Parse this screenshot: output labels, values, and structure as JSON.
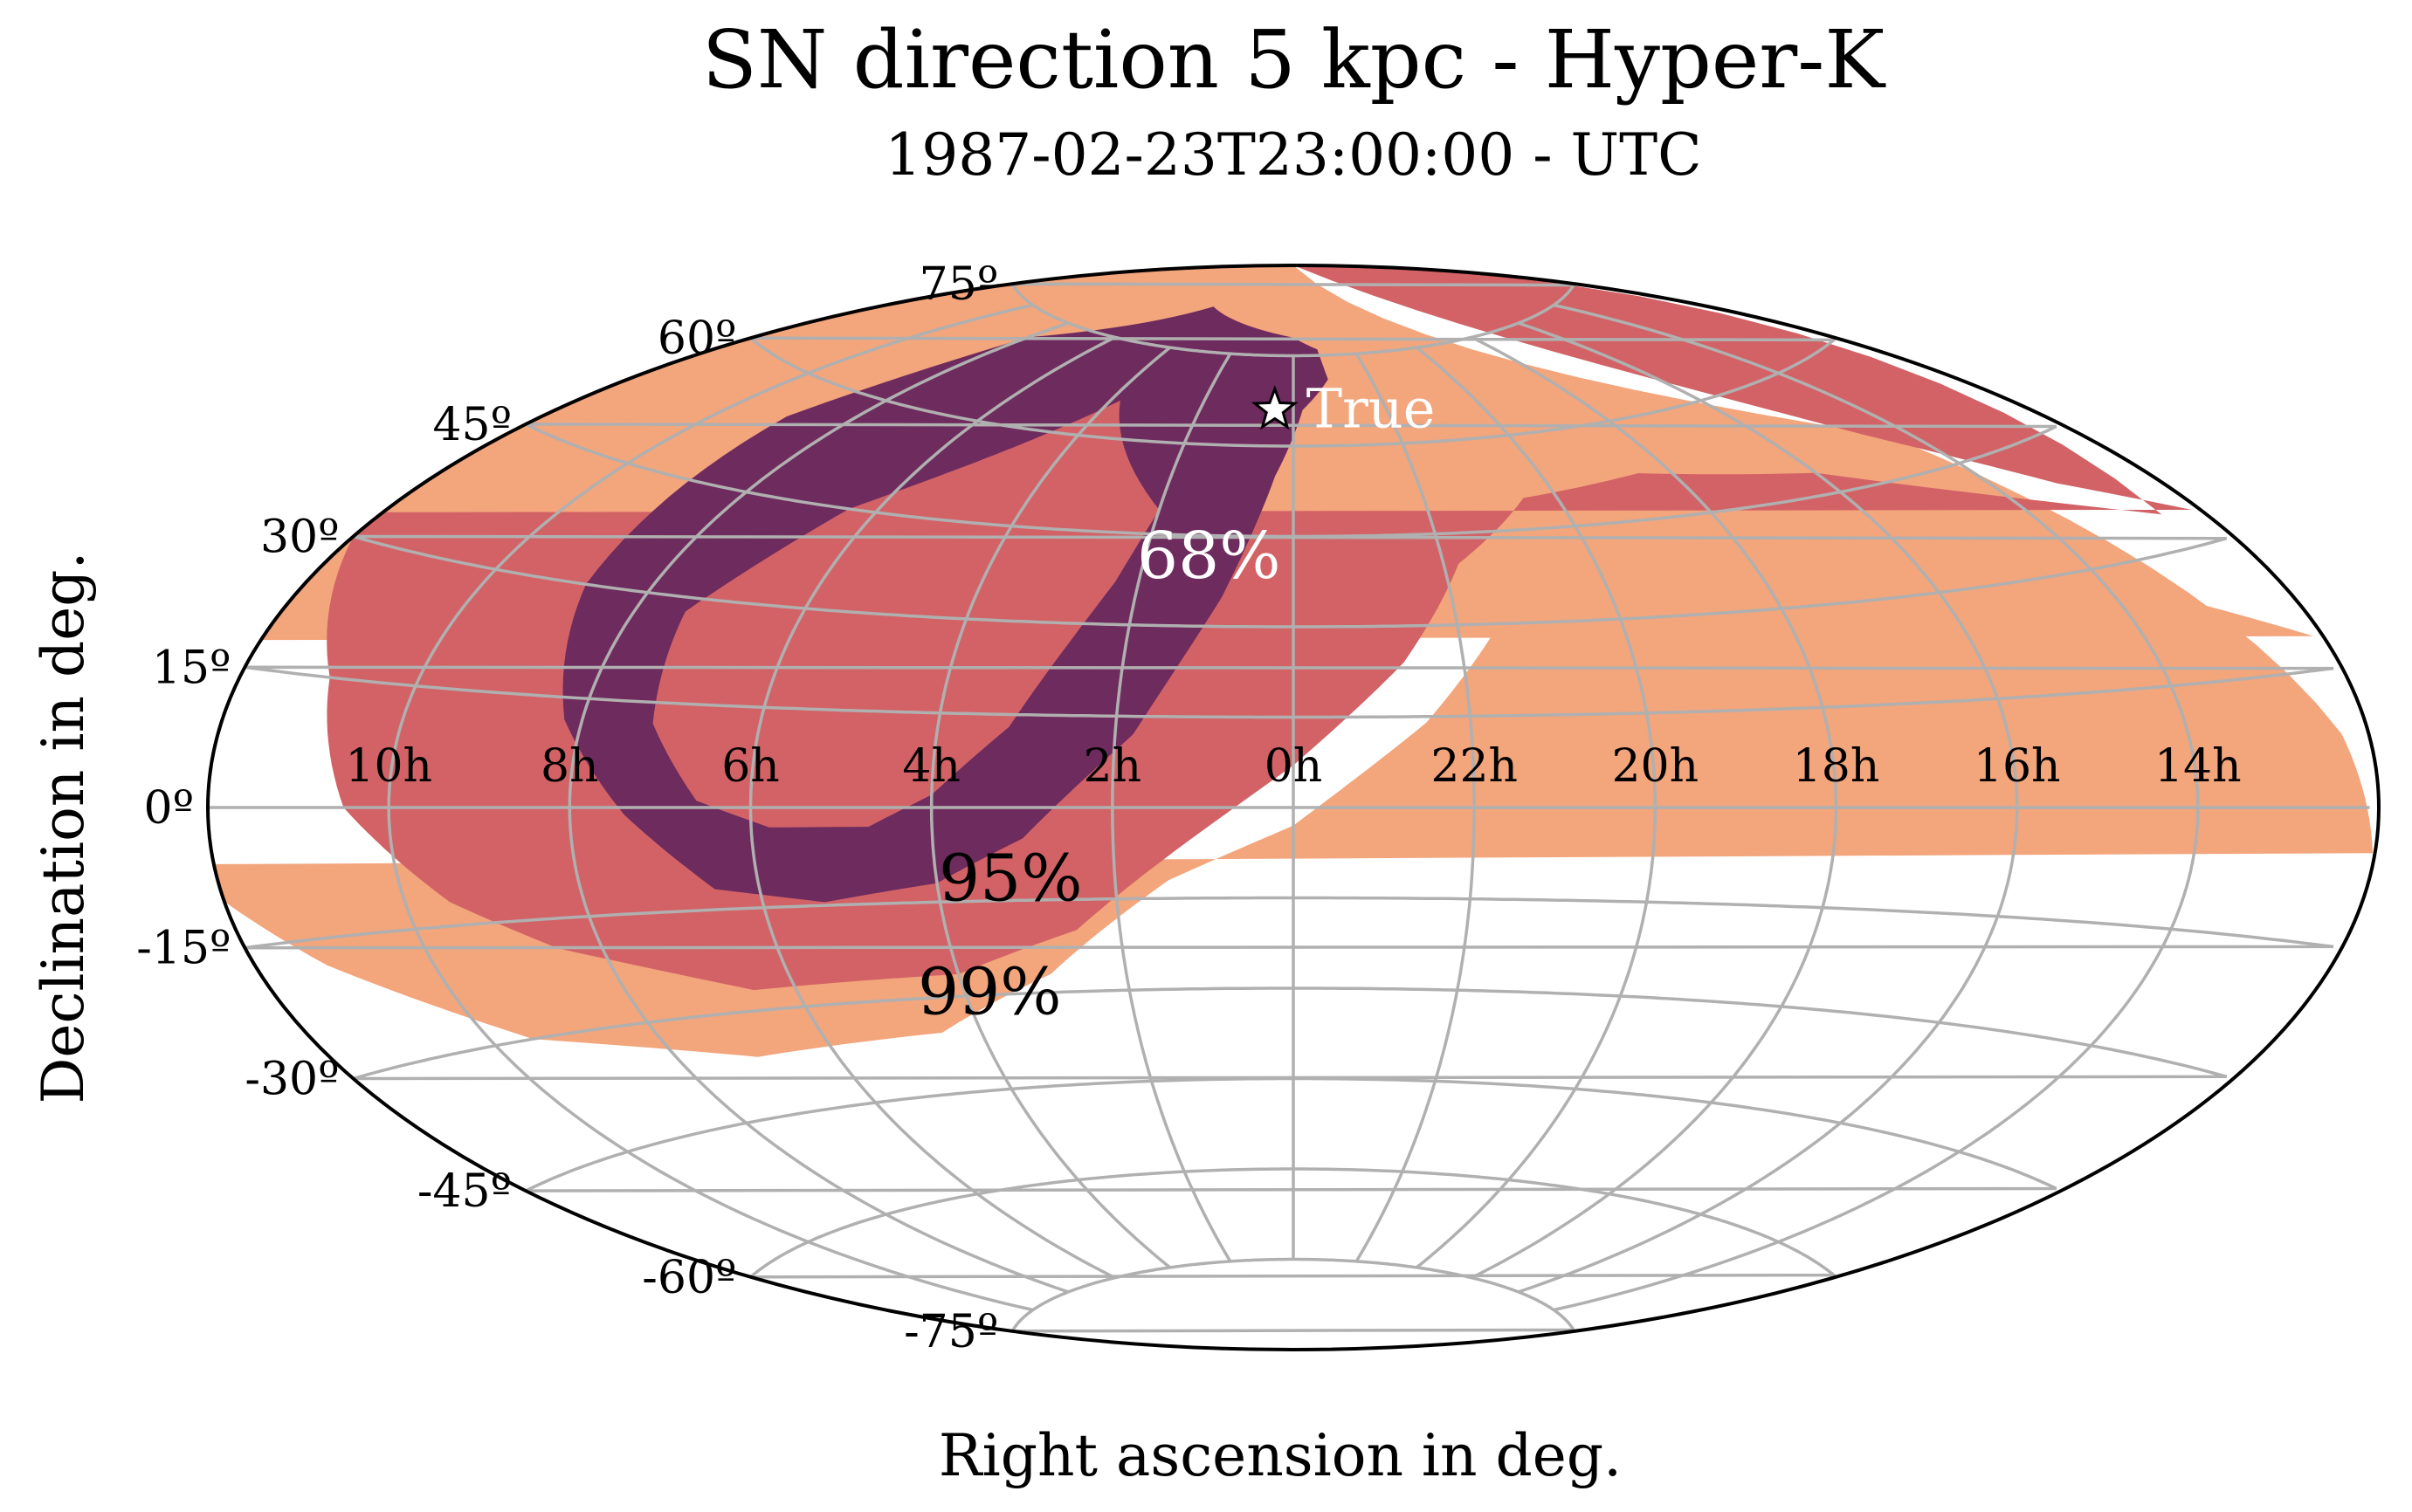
{
  "chart_data": {
    "type": "contour",
    "projection": "aitoff",
    "title": "SN direction 5 kpc - Hyper-K",
    "subtitle": "1987-02-23T23:00:00 - UTC",
    "xlabel": "Right ascension in deg.",
    "ylabel": "Declination in deg.",
    "ra_tick_labels": [
      "10h",
      "8h",
      "6h",
      "4h",
      "2h",
      "0h",
      "22h",
      "20h",
      "18h",
      "16h",
      "14h"
    ],
    "dec_tick_labels": [
      "75º",
      "60º",
      "45º",
      "30º",
      "15º",
      "0º",
      "-15º",
      "-30º",
      "-45º",
      "-60º",
      "-75º"
    ],
    "dec_ticks": [
      75,
      60,
      45,
      30,
      15,
      0,
      -15,
      -30,
      -45,
      -60,
      -75
    ],
    "grid": true,
    "true_position": {
      "label": "True",
      "ra_h": 0.4,
      "dec": 66
    },
    "regions": [
      {
        "name": "99%",
        "color": "#f3a57c",
        "label": "99%",
        "boundary": [
          [
            12,
            90
          ],
          [
            21.6,
            90
          ],
          [
            14.3,
            50
          ],
          [
            12.3,
            8
          ],
          [
            12,
            -6
          ],
          [
            12,
            -10
          ],
          [
            11.2,
            -18
          ],
          [
            9.5,
            -30
          ],
          [
            7,
            -36.5
          ],
          [
            4.5,
            -35.5
          ],
          [
            2.9,
            -27
          ],
          [
            1.4,
            -12
          ],
          [
            0,
            -3
          ],
          [
            22.5,
            14
          ],
          [
            21.3,
            33
          ],
          [
            20.3,
            45
          ],
          [
            18.6,
            46
          ],
          [
            15.5,
            37
          ],
          [
            13.3,
            25
          ],
          [
            12,
            18
          ]
        ],
        "label_pos": {
          "ra_h": 3.8,
          "dec": -33
        }
      },
      {
        "name": "95%",
        "color": "#d26266",
        "label": "95%",
        "boundary": [
          [
            12,
            90
          ],
          [
            19,
            90
          ],
          [
            14.6,
            51
          ],
          [
            13.2,
            40
          ],
          [
            12,
            33
          ],
          [
            12,
            30
          ],
          [
            11,
            15
          ],
          [
            10.5,
            0
          ],
          [
            9.5,
            -12
          ],
          [
            8.5,
            -19
          ],
          [
            6.5,
            -27
          ],
          [
            4,
            -26.5
          ],
          [
            2.5,
            -20
          ],
          [
            1.3,
            -7
          ],
          [
            0,
            7
          ],
          [
            22.7,
            24
          ],
          [
            21.8,
            40
          ],
          [
            20.5,
            50
          ],
          [
            18.5,
            52
          ],
          [
            16,
            48
          ],
          [
            14,
            40
          ],
          [
            12.5,
            34
          ]
        ],
        "label_pos": {
          "ra_h": 3.2,
          "dec": -15
        }
      },
      {
        "name": "68%",
        "color": "#6e2b5e",
        "label": "68%",
        "boundary": [
          [
            0,
            78
          ],
          [
            4.6,
            82
          ],
          [
            8,
            72
          ],
          [
            9,
            55
          ],
          [
            8.8,
            30
          ],
          [
            8.2,
            12
          ],
          [
            7.4,
            -1
          ],
          [
            6.5,
            -12
          ],
          [
            5.3,
            -14.5
          ],
          [
            4,
            -12
          ],
          [
            3,
            -5
          ],
          [
            1.8,
            12
          ],
          [
            0.9,
            35
          ],
          [
            0.3,
            55
          ],
          [
            23.8,
            66
          ],
          [
            23.1,
            71
          ],
          [
            23.2,
            76
          ]
        ],
        "label_pos": {
          "ra_h": 1.1,
          "dec": 38
        }
      },
      {
        "name": "inner",
        "color": "#d26266",
        "label": "",
        "boundary": [
          [
            3.8,
            66
          ],
          [
            4.9,
            57
          ],
          [
            6.4,
            45
          ],
          [
            7.4,
            28
          ],
          [
            7.2,
            12
          ],
          [
            6.6,
            1
          ],
          [
            5.8,
            -3
          ],
          [
            4.7,
            -3
          ],
          [
            4,
            2
          ],
          [
            3.2,
            13
          ],
          [
            2.3,
            37
          ],
          [
            2,
            49
          ]
        ],
        "label_pos": null
      }
    ]
  }
}
